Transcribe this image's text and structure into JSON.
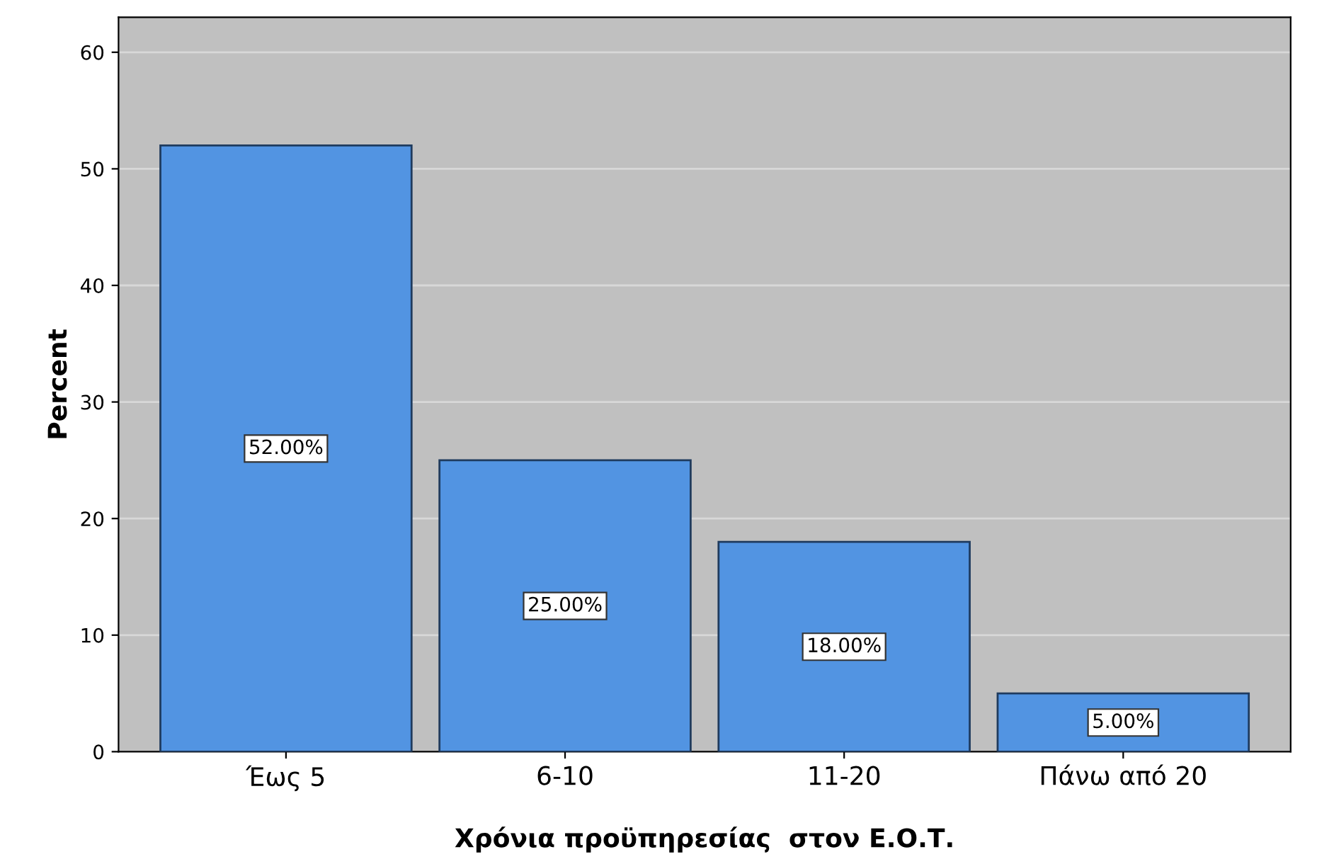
{
  "chart_data": {
    "type": "bar",
    "xlabel": "Χρόνια προϋπηρεσίας  στον Ε.Ο.Τ.",
    "ylabel": "Percent",
    "categories": [
      "Έως 5",
      "6-10",
      "11-20",
      "Πάνω από 20"
    ],
    "values": [
      52,
      25,
      18,
      5
    ],
    "value_labels": [
      "52.00%",
      "25.00%",
      "18.00%",
      "5.00%"
    ],
    "color": "#5294e2",
    "ylim": [
      0,
      63
    ],
    "yticks": [
      0,
      10,
      20,
      30,
      40,
      50,
      60
    ],
    "grid": "y"
  }
}
